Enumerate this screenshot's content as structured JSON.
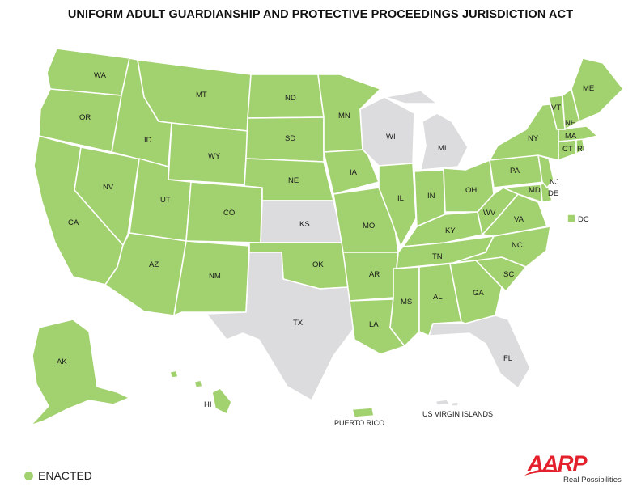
{
  "title": "UNIFORM ADULT GUARDIANSHIP AND PROTECTIVE PROCEEDINGS JURISDICTION ACT",
  "colors": {
    "enacted": "#a2d16f",
    "not_enacted": "#dcdcde",
    "border": "#ffffff",
    "brand": "#e3202b"
  },
  "legend": {
    "label": "ENACTED"
  },
  "states": {
    "WA": {
      "label": "WA",
      "status": "enacted"
    },
    "OR": {
      "label": "OR",
      "status": "enacted"
    },
    "CA": {
      "label": "CA",
      "status": "enacted"
    },
    "NV": {
      "label": "NV",
      "status": "enacted"
    },
    "ID": {
      "label": "ID",
      "status": "enacted"
    },
    "MT": {
      "label": "MT",
      "status": "enacted"
    },
    "WY": {
      "label": "WY",
      "status": "enacted"
    },
    "UT": {
      "label": "UT",
      "status": "enacted"
    },
    "AZ": {
      "label": "AZ",
      "status": "enacted"
    },
    "CO": {
      "label": "CO",
      "status": "enacted"
    },
    "NM": {
      "label": "NM",
      "status": "enacted"
    },
    "ND": {
      "label": "ND",
      "status": "enacted"
    },
    "SD": {
      "label": "SD",
      "status": "enacted"
    },
    "NE": {
      "label": "NE",
      "status": "enacted"
    },
    "KS": {
      "label": "KS",
      "status": "not_enacted"
    },
    "OK": {
      "label": "OK",
      "status": "enacted"
    },
    "TX": {
      "label": "TX",
      "status": "not_enacted"
    },
    "MN": {
      "label": "MN",
      "status": "enacted"
    },
    "IA": {
      "label": "IA",
      "status": "enacted"
    },
    "MO": {
      "label": "MO",
      "status": "enacted"
    },
    "AR": {
      "label": "AR",
      "status": "enacted"
    },
    "LA": {
      "label": "LA",
      "status": "enacted"
    },
    "WI": {
      "label": "WI",
      "status": "not_enacted"
    },
    "IL": {
      "label": "IL",
      "status": "enacted"
    },
    "MI": {
      "label": "MI",
      "status": "not_enacted"
    },
    "IN": {
      "label": "IN",
      "status": "enacted"
    },
    "OH": {
      "label": "OH",
      "status": "enacted"
    },
    "KY": {
      "label": "KY",
      "status": "enacted"
    },
    "TN": {
      "label": "TN",
      "status": "enacted"
    },
    "MS": {
      "label": "MS",
      "status": "enacted"
    },
    "AL": {
      "label": "AL",
      "status": "enacted"
    },
    "GA": {
      "label": "GA",
      "status": "enacted"
    },
    "FL": {
      "label": "FL",
      "status": "not_enacted"
    },
    "SC": {
      "label": "SC",
      "status": "enacted"
    },
    "NC": {
      "label": "NC",
      "status": "enacted"
    },
    "VA": {
      "label": "VA",
      "status": "enacted"
    },
    "WV": {
      "label": "WV",
      "status": "enacted"
    },
    "MD": {
      "label": "MD",
      "status": "enacted"
    },
    "DE": {
      "label": "DE",
      "status": "enacted"
    },
    "PA": {
      "label": "PA",
      "status": "enacted"
    },
    "NJ": {
      "label": "NJ",
      "status": "enacted"
    },
    "NY": {
      "label": "NY",
      "status": "enacted"
    },
    "CT": {
      "label": "CT",
      "status": "enacted"
    },
    "RI": {
      "label": "RI",
      "status": "enacted"
    },
    "MA": {
      "label": "MA",
      "status": "enacted"
    },
    "VT": {
      "label": "VT",
      "status": "enacted"
    },
    "NH": {
      "label": "NH",
      "status": "enacted"
    },
    "ME": {
      "label": "ME",
      "status": "enacted"
    },
    "AK": {
      "label": "AK",
      "status": "enacted"
    },
    "HI": {
      "label": "HI",
      "status": "enacted"
    },
    "DC": {
      "label": "DC",
      "status": "enacted"
    }
  },
  "territories": {
    "PR": {
      "label": "PUERTO RICO",
      "status": "enacted"
    },
    "VI": {
      "label": "US VIRGIN ISLANDS",
      "status": "not_enacted"
    }
  },
  "logo": {
    "wordmark": "AARP",
    "tagline": "Real Possibilities"
  }
}
